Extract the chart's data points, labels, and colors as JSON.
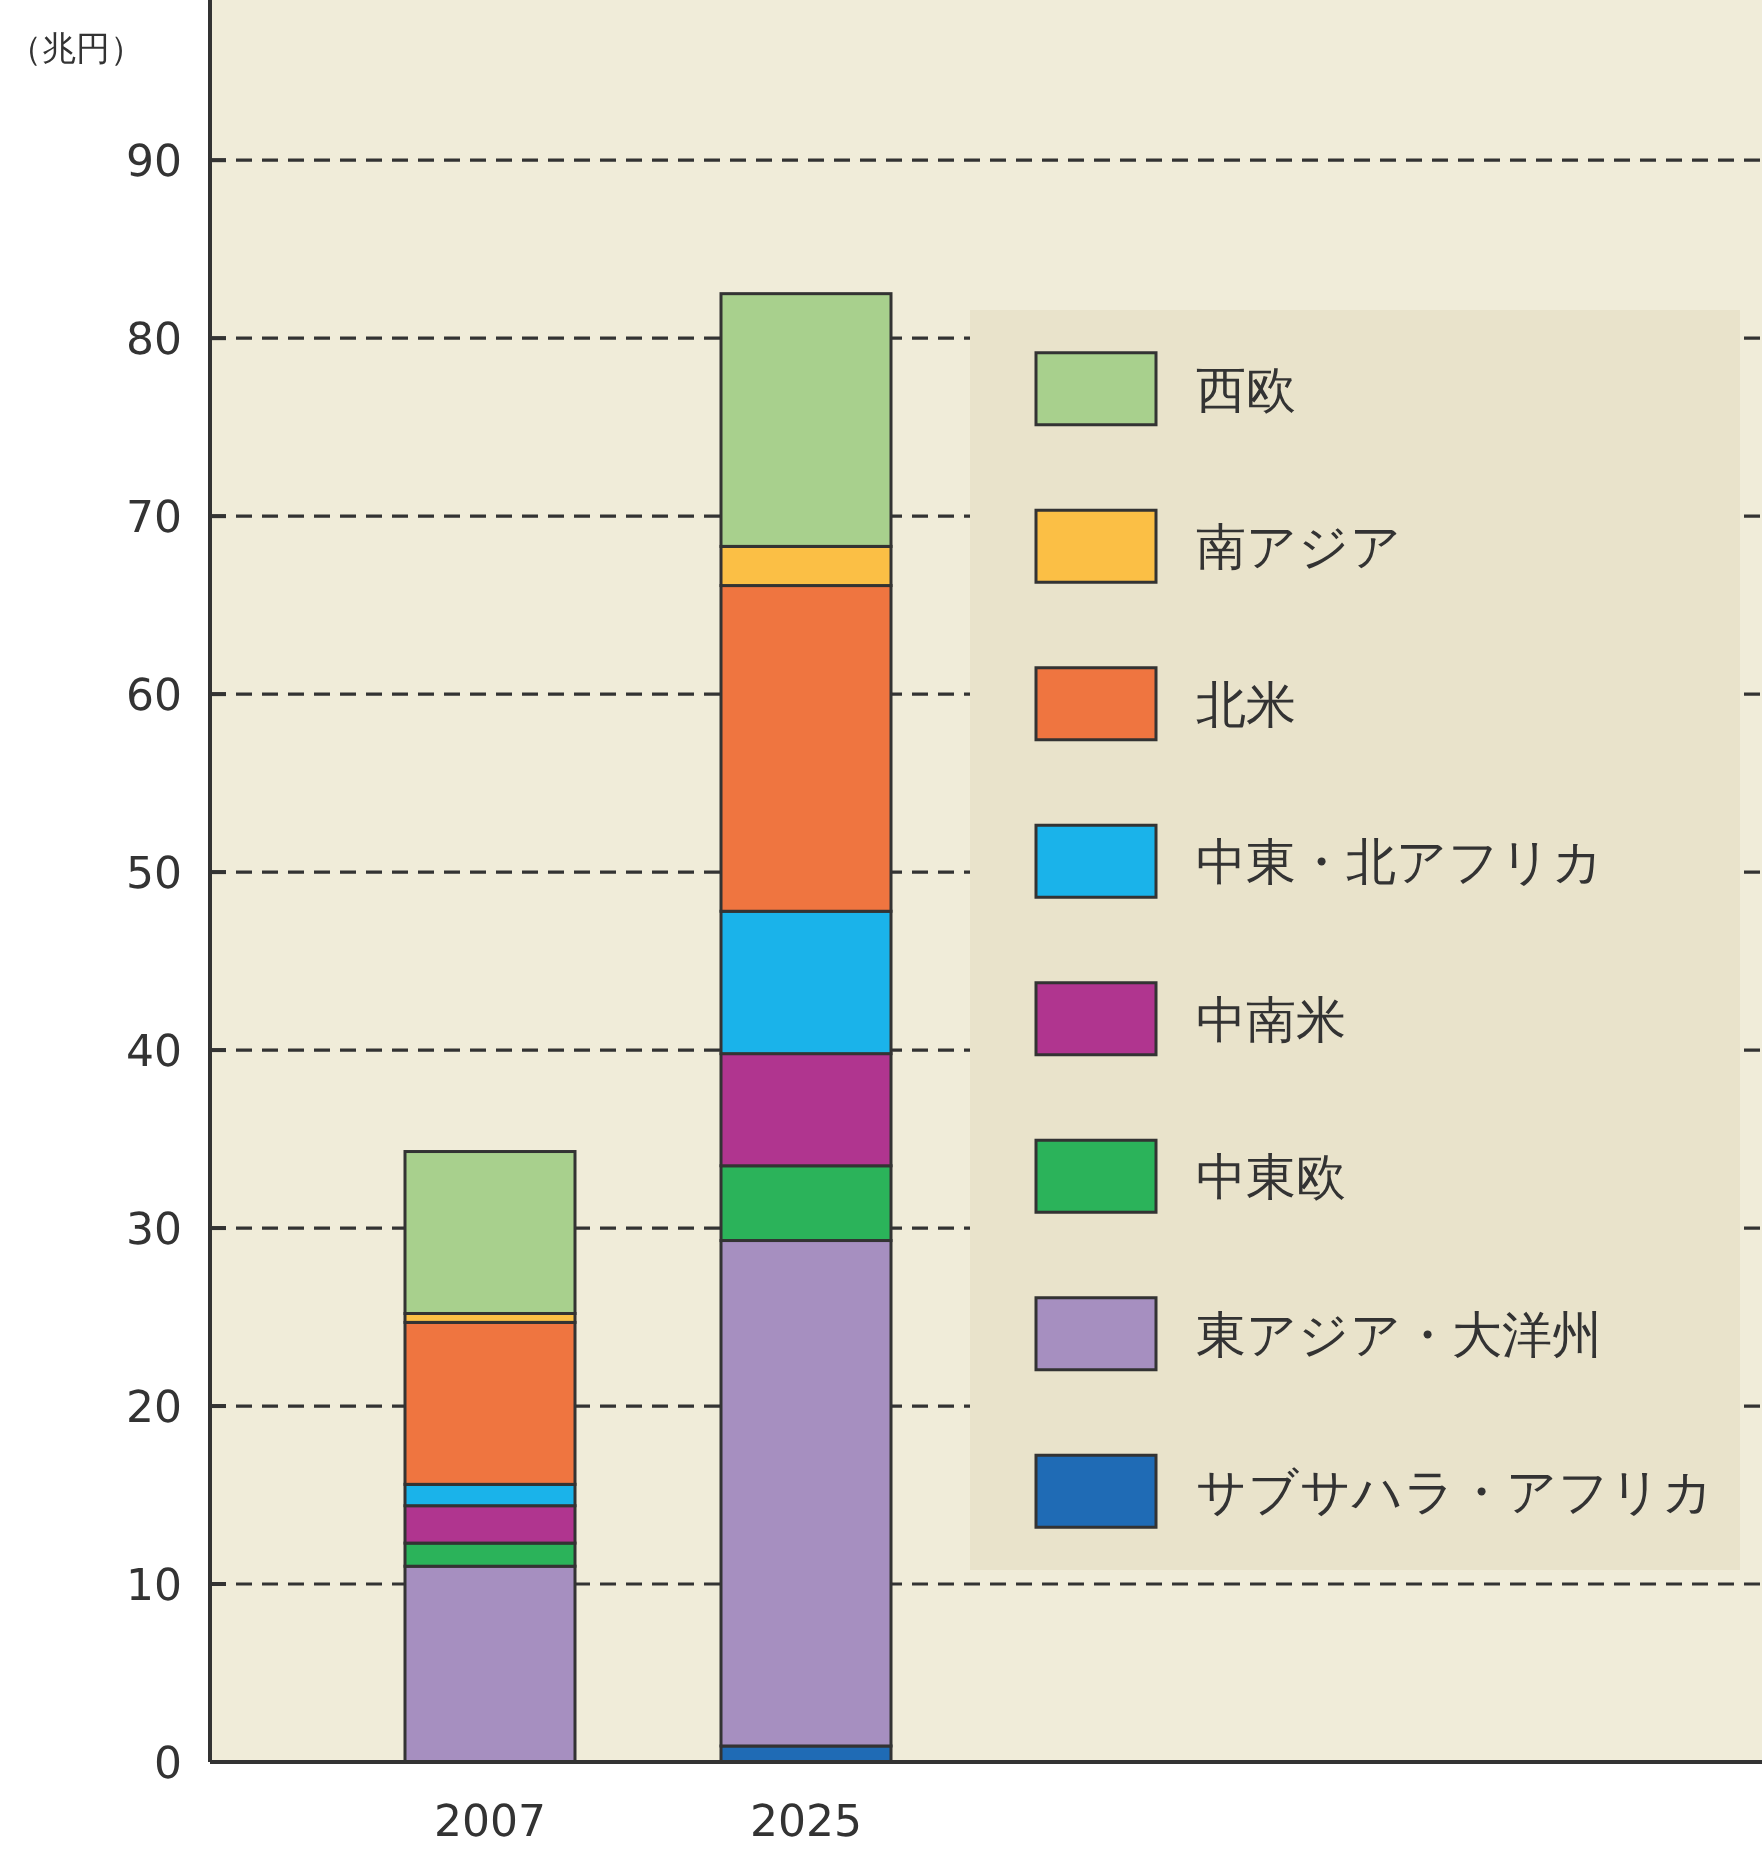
{
  "chart_data": {
    "type": "bar",
    "stacked": true,
    "ylabel": "（兆円）",
    "categories": [
      "2007",
      "2025"
    ],
    "series": [
      {
        "name": "サブサハラ・アフリカ",
        "color": "#1f6bb5",
        "values": [
          null,
          0.9
        ]
      },
      {
        "name": "東アジア・大洋州",
        "color": "#a68fc0",
        "values": [
          11.0,
          28.4
        ]
      },
      {
        "name": "中東欧",
        "color": "#2bb35a",
        "values": [
          1.3,
          4.2
        ]
      },
      {
        "name": "中南米",
        "color": "#b0358f",
        "values": [
          2.1,
          6.3
        ]
      },
      {
        "name": "中東・北アフリカ",
        "color": "#1ab3ea",
        "values": [
          1.2,
          8.0
        ]
      },
      {
        "name": "北米",
        "color": "#ef7540",
        "values": [
          9.1,
          18.3
        ]
      },
      {
        "name": "南アジア",
        "color": "#fbbf45",
        "values": [
          0.5,
          2.2
        ]
      },
      {
        "name": "西欧",
        "color": "#a8d08d",
        "values": [
          9.1,
          14.2
        ]
      }
    ],
    "ylim": [
      0,
      99
    ],
    "yticks": [
      0,
      10,
      20,
      30,
      40,
      50,
      60,
      70,
      80,
      90
    ],
    "grid": "y",
    "legend": "right"
  }
}
